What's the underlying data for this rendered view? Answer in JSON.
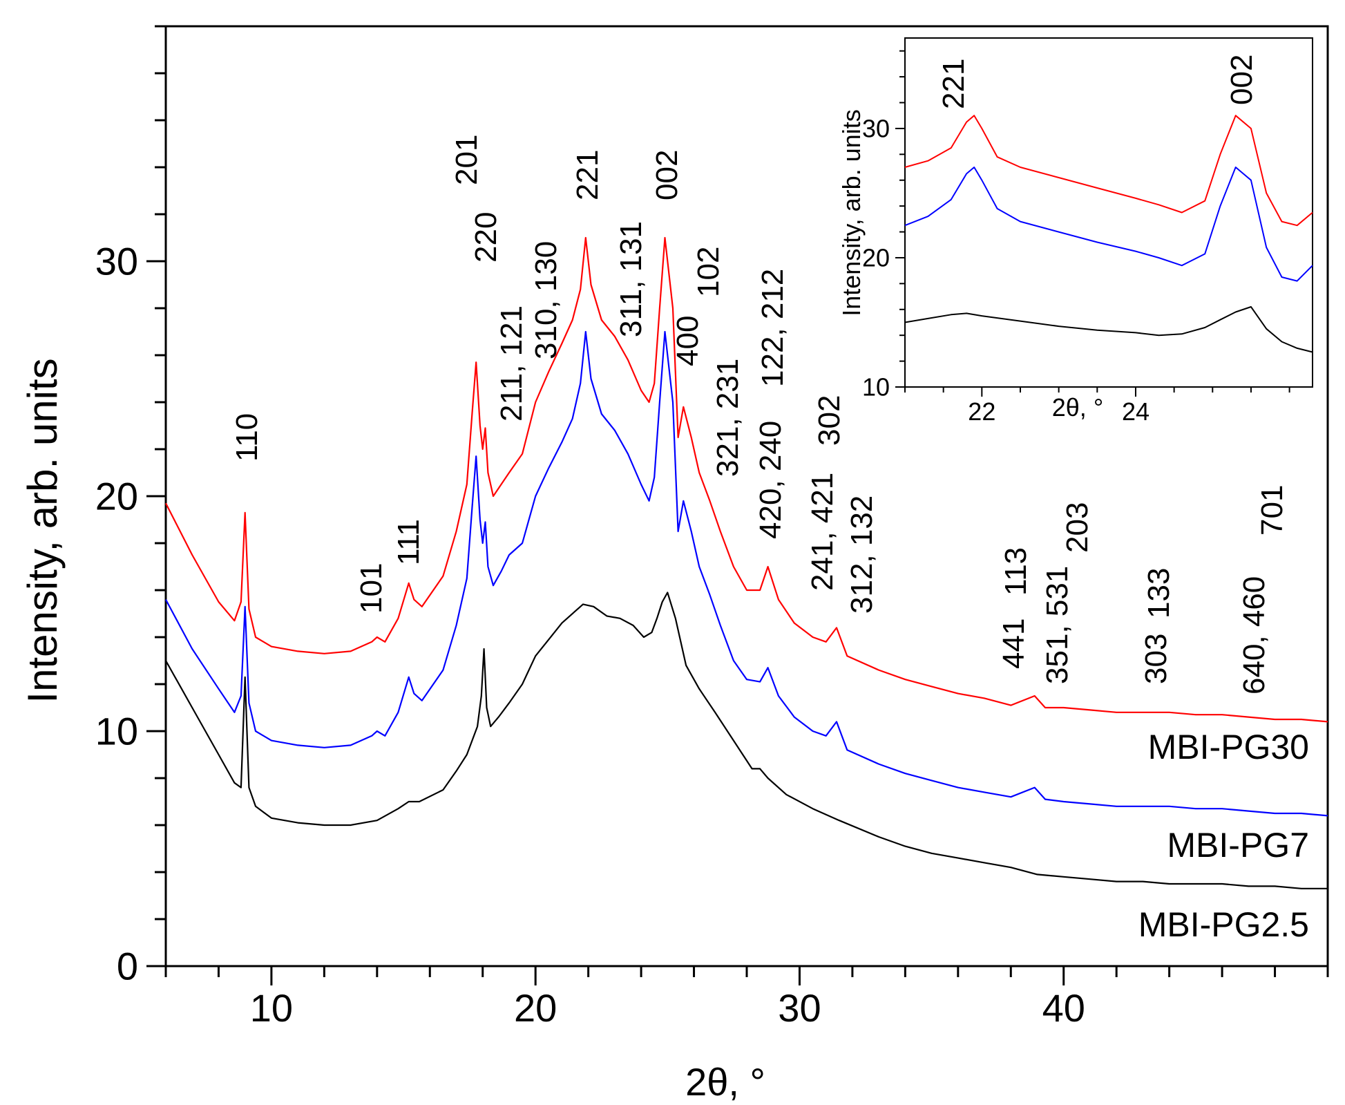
{
  "chart_data": [
    {
      "type": "line",
      "title": "",
      "xlabel": "2θ, °",
      "ylabel": "Intensity, arb. units",
      "xlim": [
        6,
        50
      ],
      "ylim": [
        0,
        40
      ],
      "xticks": [
        10,
        20,
        30,
        40
      ],
      "yticks": [
        0,
        10,
        20,
        30
      ],
      "series": [
        {
          "name": "MBI-PG30",
          "color": "#ff0000",
          "x": [
            6,
            7,
            8,
            8.6,
            8.85,
            9.0,
            9.15,
            9.4,
            10,
            11,
            12,
            13,
            13.8,
            14.0,
            14.3,
            14.8,
            15.2,
            15.4,
            15.7,
            16.5,
            17.0,
            17.4,
            17.6,
            17.75,
            17.9,
            18.0,
            18.1,
            18.2,
            18.4,
            18.7,
            19.0,
            19.5,
            20.0,
            20.5,
            21.0,
            21.4,
            21.7,
            21.9,
            22.1,
            22.5,
            23.0,
            23.5,
            24.0,
            24.3,
            24.5,
            24.7,
            24.9,
            25.2,
            25.4,
            25.6,
            25.9,
            26.2,
            26.6,
            27.0,
            27.5,
            28.0,
            28.5,
            28.8,
            29.2,
            29.8,
            30.5,
            31.0,
            31.4,
            31.8,
            33,
            34,
            35,
            36,
            37,
            38,
            38.9,
            39.3,
            40,
            41,
            42,
            43,
            44,
            45,
            46,
            47,
            48,
            49,
            50
          ],
          "y": [
            19.7,
            17.5,
            15.5,
            14.7,
            15.5,
            19.3,
            15.2,
            14.0,
            13.6,
            13.4,
            13.3,
            13.4,
            13.8,
            14.0,
            13.8,
            14.8,
            16.3,
            15.6,
            15.3,
            16.6,
            18.5,
            20.5,
            23.5,
            25.7,
            23.0,
            22.0,
            22.9,
            21.0,
            20.0,
            20.5,
            21.0,
            21.8,
            24.0,
            25.3,
            26.5,
            27.5,
            28.8,
            31.0,
            29.0,
            27.5,
            26.8,
            25.8,
            24.5,
            24.0,
            24.8,
            28.0,
            31.0,
            28.0,
            22.5,
            23.8,
            22.5,
            21.0,
            19.8,
            18.5,
            17.0,
            16.0,
            16.0,
            17.0,
            15.6,
            14.6,
            14.0,
            13.8,
            14.4,
            13.2,
            12.6,
            12.2,
            11.9,
            11.6,
            11.4,
            11.1,
            11.5,
            11.0,
            11.0,
            10.9,
            10.8,
            10.8,
            10.8,
            10.7,
            10.7,
            10.6,
            10.5,
            10.5,
            10.4
          ]
        },
        {
          "name": "MBI-PG7",
          "color": "#0000ff",
          "x": [
            6,
            7,
            8,
            8.6,
            8.85,
            9.0,
            9.15,
            9.4,
            10,
            11,
            12,
            13,
            13.8,
            14.0,
            14.3,
            14.8,
            15.2,
            15.4,
            15.7,
            16.5,
            17.0,
            17.4,
            17.6,
            17.75,
            17.9,
            18.0,
            18.1,
            18.2,
            18.4,
            18.7,
            19.0,
            19.5,
            20.0,
            20.5,
            21.0,
            21.4,
            21.7,
            21.9,
            22.1,
            22.5,
            23.0,
            23.5,
            24.0,
            24.3,
            24.5,
            24.7,
            24.9,
            25.2,
            25.4,
            25.6,
            25.9,
            26.2,
            26.6,
            27.0,
            27.5,
            28.0,
            28.5,
            28.8,
            29.2,
            29.8,
            30.5,
            31.0,
            31.4,
            31.8,
            33,
            34,
            35,
            36,
            37,
            38,
            38.9,
            39.3,
            40,
            41,
            42,
            43,
            44,
            45,
            46,
            47,
            48,
            49,
            50
          ],
          "y": [
            15.6,
            13.5,
            11.8,
            10.8,
            11.5,
            15.3,
            11.2,
            10.0,
            9.6,
            9.4,
            9.3,
            9.4,
            9.8,
            10.0,
            9.8,
            10.8,
            12.3,
            11.6,
            11.3,
            12.6,
            14.5,
            16.5,
            19.5,
            21.7,
            19.0,
            18.0,
            18.9,
            17.0,
            16.2,
            16.8,
            17.5,
            18.0,
            20.0,
            21.2,
            22.3,
            23.3,
            24.8,
            27.0,
            25.0,
            23.5,
            22.8,
            21.8,
            20.5,
            19.8,
            20.8,
            24.0,
            27.0,
            24.0,
            18.5,
            19.8,
            18.5,
            17.0,
            15.8,
            14.5,
            13.0,
            12.2,
            12.1,
            12.7,
            11.5,
            10.6,
            10.0,
            9.8,
            10.4,
            9.2,
            8.6,
            8.2,
            7.9,
            7.6,
            7.4,
            7.2,
            7.6,
            7.1,
            7.0,
            6.9,
            6.8,
            6.8,
            6.8,
            6.7,
            6.7,
            6.6,
            6.5,
            6.5,
            6.4
          ]
        },
        {
          "name": "MBI-PG2.5",
          "color": "#000000",
          "x": [
            6,
            7,
            8,
            8.6,
            8.85,
            9.0,
            9.15,
            9.4,
            10,
            11,
            12,
            13,
            14,
            14.8,
            15.2,
            15.6,
            16.5,
            17.0,
            17.4,
            17.8,
            17.95,
            18.05,
            18.15,
            18.3,
            18.6,
            19.0,
            19.5,
            20.0,
            20.5,
            21.0,
            21.5,
            21.8,
            22.2,
            22.7,
            23.2,
            23.7,
            24.1,
            24.4,
            24.6,
            24.8,
            25.0,
            25.3,
            25.7,
            26.2,
            26.8,
            27.5,
            28.2,
            28.5,
            28.8,
            29.5,
            30.5,
            31.5,
            33,
            34,
            35,
            36,
            37,
            38,
            39,
            40,
            41,
            42,
            43,
            44,
            45,
            46,
            47,
            48,
            49,
            50
          ],
          "y": [
            13.0,
            11.0,
            9.0,
            7.8,
            7.6,
            12.3,
            7.6,
            6.8,
            6.3,
            6.1,
            6.0,
            6.0,
            6.2,
            6.7,
            7.0,
            7.0,
            7.5,
            8.3,
            9.0,
            10.2,
            11.5,
            13.5,
            11.0,
            10.2,
            10.6,
            11.2,
            12.0,
            13.2,
            13.9,
            14.6,
            15.1,
            15.4,
            15.3,
            14.9,
            14.8,
            14.5,
            14.0,
            14.2,
            14.8,
            15.5,
            15.9,
            14.8,
            12.8,
            11.8,
            10.8,
            9.6,
            8.4,
            8.4,
            8.0,
            7.3,
            6.7,
            6.2,
            5.5,
            5.1,
            4.8,
            4.6,
            4.4,
            4.2,
            3.9,
            3.8,
            3.7,
            3.6,
            3.6,
            3.5,
            3.5,
            3.5,
            3.4,
            3.4,
            3.3,
            3.3
          ]
        }
      ],
      "peak_labels": [
        "110",
        "101",
        "111",
        "220",
        "201",
        "211, 121",
        "310, 130",
        "221",
        "311, 131",
        "002",
        "400",
        "102",
        "321, 231",
        "420, 240",
        "122, 212",
        "241, 421",
        "302",
        "312, 132",
        "441",
        "113",
        "351, 531",
        "203",
        "303",
        "133",
        "640, 460",
        "701"
      ],
      "series_labels": [
        "MBI-PG30",
        "MBI-PG7",
        "MBI-PG2.5"
      ]
    },
    {
      "type": "line",
      "title": "inset",
      "xlabel": "2θ, °",
      "ylabel": "Intensity, arb. units",
      "xlim": [
        21,
        26.3
      ],
      "ylim": [
        10,
        37
      ],
      "xticks": [
        22,
        24
      ],
      "yticks": [
        10,
        20,
        30
      ],
      "series": [
        {
          "name": "MBI-PG30",
          "color": "#ff0000",
          "x": [
            21.0,
            21.3,
            21.6,
            21.8,
            21.9,
            22.0,
            22.2,
            22.5,
            23.0,
            23.5,
            24.0,
            24.3,
            24.6,
            24.9,
            25.1,
            25.3,
            25.5,
            25.7,
            25.9,
            26.1,
            26.3
          ],
          "y": [
            27.0,
            27.5,
            28.5,
            30.5,
            31.0,
            30.0,
            27.8,
            27.0,
            26.2,
            25.4,
            24.6,
            24.1,
            23.5,
            24.4,
            28.0,
            31.0,
            30.0,
            25.0,
            22.8,
            22.5,
            23.5
          ]
        },
        {
          "name": "MBI-PG7",
          "color": "#0000ff",
          "x": [
            21.0,
            21.3,
            21.6,
            21.8,
            21.9,
            22.0,
            22.2,
            22.5,
            23.0,
            23.5,
            24.0,
            24.3,
            24.6,
            24.9,
            25.1,
            25.3,
            25.5,
            25.7,
            25.9,
            26.1,
            26.3
          ],
          "y": [
            22.5,
            23.2,
            24.5,
            26.5,
            27.0,
            26.0,
            23.8,
            22.8,
            22.0,
            21.2,
            20.5,
            20.0,
            19.4,
            20.3,
            24.0,
            27.0,
            26.0,
            20.8,
            18.5,
            18.2,
            19.4
          ]
        },
        {
          "name": "MBI-PG2.5",
          "color": "#000000",
          "x": [
            21.0,
            21.3,
            21.6,
            21.8,
            22.0,
            22.5,
            23.0,
            23.5,
            24.0,
            24.3,
            24.6,
            24.9,
            25.1,
            25.3,
            25.5,
            25.7,
            25.9,
            26.1,
            26.3
          ],
          "y": [
            15.0,
            15.3,
            15.6,
            15.7,
            15.5,
            15.1,
            14.7,
            14.4,
            14.2,
            14.0,
            14.1,
            14.6,
            15.2,
            15.8,
            16.2,
            14.5,
            13.5,
            13.0,
            12.7
          ]
        }
      ],
      "peak_labels": [
        "221",
        "002"
      ]
    }
  ]
}
